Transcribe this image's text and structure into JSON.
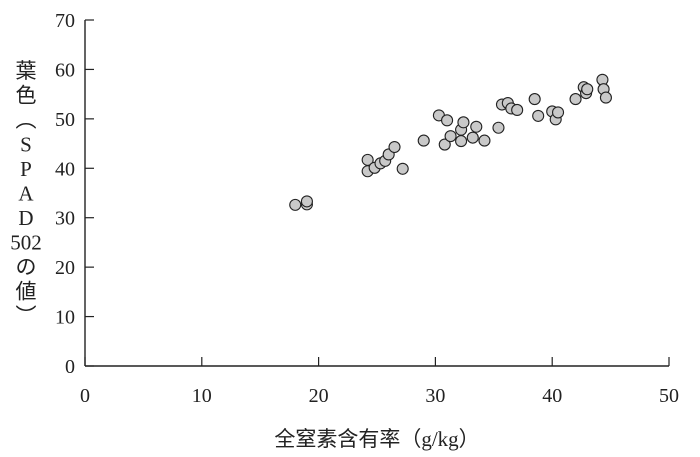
{
  "chart_data": {
    "type": "scatter",
    "xlabel": "全窒素含有率（g/kg）",
    "ylabel": "葉色（SPAD502の値）",
    "xlim": [
      0,
      50
    ],
    "ylim": [
      0,
      70
    ],
    "xticks": [
      "0",
      "10",
      "20",
      "30",
      "40",
      "50"
    ],
    "yticks": [
      "0",
      "10",
      "20",
      "30",
      "40",
      "50",
      "60",
      "70"
    ],
    "grid": false,
    "marker_fill": "#c9c9c9",
    "marker_stroke": "#222222",
    "points": [
      {
        "x": 18.0,
        "y": 32.6
      },
      {
        "x": 19.0,
        "y": 32.7
      },
      {
        "x": 19.0,
        "y": 33.3
      },
      {
        "x": 24.2,
        "y": 39.4
      },
      {
        "x": 24.2,
        "y": 41.7
      },
      {
        "x": 24.8,
        "y": 40.1
      },
      {
        "x": 25.3,
        "y": 41.0
      },
      {
        "x": 25.7,
        "y": 41.5
      },
      {
        "x": 26.0,
        "y": 42.8
      },
      {
        "x": 26.5,
        "y": 44.3
      },
      {
        "x": 27.2,
        "y": 39.9
      },
      {
        "x": 29.0,
        "y": 45.6
      },
      {
        "x": 30.3,
        "y": 50.7
      },
      {
        "x": 30.8,
        "y": 44.8
      },
      {
        "x": 31.0,
        "y": 49.7
      },
      {
        "x": 31.3,
        "y": 46.5
      },
      {
        "x": 32.2,
        "y": 45.5
      },
      {
        "x": 32.2,
        "y": 47.8
      },
      {
        "x": 32.4,
        "y": 49.3
      },
      {
        "x": 33.2,
        "y": 46.2
      },
      {
        "x": 33.5,
        "y": 48.4
      },
      {
        "x": 34.2,
        "y": 45.6
      },
      {
        "x": 35.4,
        "y": 48.2
      },
      {
        "x": 35.7,
        "y": 52.9
      },
      {
        "x": 36.2,
        "y": 53.2
      },
      {
        "x": 36.5,
        "y": 52.1
      },
      {
        "x": 37.0,
        "y": 51.8
      },
      {
        "x": 38.5,
        "y": 54.0
      },
      {
        "x": 38.8,
        "y": 50.6
      },
      {
        "x": 40.0,
        "y": 51.5
      },
      {
        "x": 40.3,
        "y": 49.9
      },
      {
        "x": 40.5,
        "y": 51.3
      },
      {
        "x": 42.0,
        "y": 54.0
      },
      {
        "x": 42.7,
        "y": 56.4
      },
      {
        "x": 42.9,
        "y": 55.2
      },
      {
        "x": 43.0,
        "y": 56.0
      },
      {
        "x": 44.3,
        "y": 57.9
      },
      {
        "x": 44.4,
        "y": 56.0
      },
      {
        "x": 44.6,
        "y": 54.3
      }
    ]
  }
}
